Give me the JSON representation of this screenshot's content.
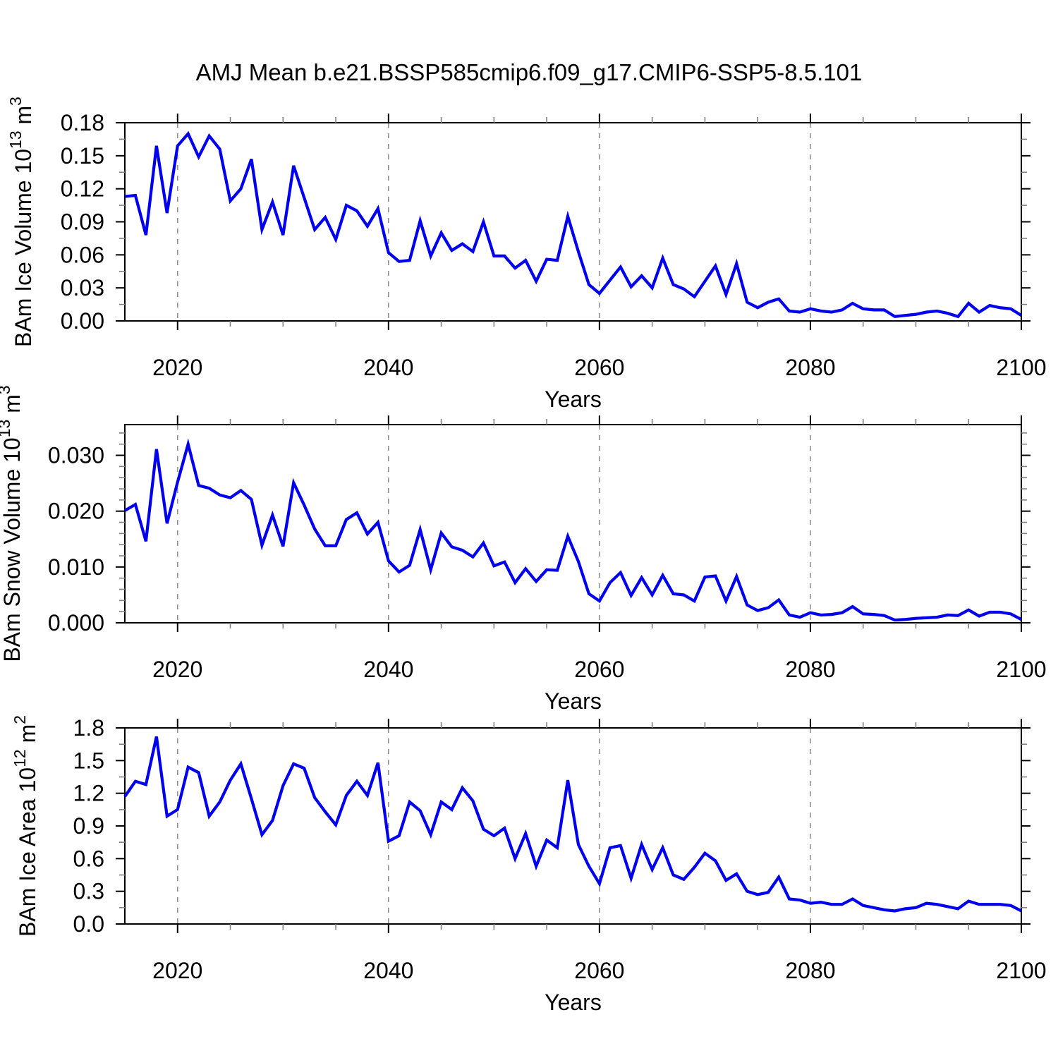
{
  "title": "AMJ Mean b.e21.BSSP585cmip6.f09_g17.CMIP6-SSP5-8.5.101",
  "colors": {
    "line": "#0000EE",
    "axis": "#000000",
    "minor_tick": "#808080",
    "gridline": "#909090",
    "text": "#000000",
    "background": "#ffffff"
  },
  "chart_data": [
    {
      "type": "line",
      "title": "",
      "xlabel": "Years",
      "ylabel_parts": [
        {
          "t": "BAm Ice Volume 10",
          "sup": false
        },
        {
          "t": "13",
          "sup": true
        },
        {
          "t": " m",
          "sup": false
        },
        {
          "t": "3",
          "sup": true
        }
      ],
      "xlim": [
        2015,
        2100
      ],
      "x_start": 2015,
      "x_step": 1,
      "ylim": [
        0,
        0.18
      ],
      "xticks_major": {
        "values": [
          2020,
          2040,
          2060,
          2080,
          2100
        ],
        "labels": [
          "2020",
          "2040",
          "2060",
          "2080",
          "2100"
        ]
      },
      "xtick_minor_step": 5,
      "yticks_major": {
        "values": [
          0,
          0.03,
          0.06,
          0.09,
          0.12,
          0.15,
          0.18
        ],
        "labels": [
          "0.00",
          "0.03",
          "0.06",
          "0.09",
          "0.12",
          "0.15",
          "0.18"
        ]
      },
      "ytick_minor_step": 0.015,
      "gridlines_x": [
        2020,
        2040,
        2060,
        2080
      ],
      "grid_style": "vertical-dashed",
      "legend": "none",
      "values": [
        0.113,
        0.114,
        0.078,
        0.159,
        0.098,
        0.159,
        0.17,
        0.149,
        0.168,
        0.156,
        0.109,
        0.12,
        0.147,
        0.083,
        0.108,
        0.078,
        0.141,
        0.112,
        0.083,
        0.094,
        0.074,
        0.105,
        0.1,
        0.086,
        0.102,
        0.062,
        0.054,
        0.055,
        0.091,
        0.059,
        0.08,
        0.064,
        0.07,
        0.063,
        0.09,
        0.059,
        0.059,
        0.048,
        0.055,
        0.036,
        0.056,
        0.055,
        0.095,
        0.063,
        0.033,
        0.025,
        0.037,
        0.049,
        0.031,
        0.041,
        0.03,
        0.057,
        0.033,
        0.029,
        0.022,
        0.036,
        0.05,
        0.024,
        0.052,
        0.017,
        0.012,
        0.017,
        0.02,
        0.009,
        0.008,
        0.011,
        0.009,
        0.008,
        0.01,
        0.016,
        0.011,
        0.01,
        0.01,
        0.004,
        0.005,
        0.006,
        0.008,
        0.009,
        0.007,
        0.004,
        0.016,
        0.008,
        0.014,
        0.012,
        0.011,
        0.005
      ]
    },
    {
      "type": "line",
      "title": "",
      "xlabel": "Years",
      "ylabel_parts": [
        {
          "t": "BAm Snow Volume 10",
          "sup": false
        },
        {
          "t": "13",
          "sup": true
        },
        {
          "t": " m",
          "sup": false
        },
        {
          "t": "3",
          "sup": true
        }
      ],
      "xlim": [
        2015,
        2100
      ],
      "x_start": 2015,
      "x_step": 1,
      "ylim": [
        0,
        0.0355
      ],
      "xticks_major": {
        "values": [
          2020,
          2040,
          2060,
          2080,
          2100
        ],
        "labels": [
          "2020",
          "2040",
          "2060",
          "2080",
          "2100"
        ]
      },
      "xtick_minor_step": 5,
      "yticks_major": {
        "values": [
          0,
          0.01,
          0.02,
          0.03
        ],
        "labels": [
          "0.000",
          "0.010",
          "0.020",
          "0.030"
        ]
      },
      "ytick_minor_step": 0.002,
      "gridlines_x": [
        2020,
        2040,
        2060,
        2080
      ],
      "grid_style": "vertical-dashed",
      "legend": "none",
      "values": [
        0.0201,
        0.0212,
        0.0146,
        0.0311,
        0.0178,
        0.0252,
        0.032,
        0.0246,
        0.0241,
        0.0229,
        0.0224,
        0.0237,
        0.0221,
        0.0139,
        0.0193,
        0.0137,
        0.0251,
        0.0211,
        0.0168,
        0.0138,
        0.0138,
        0.0185,
        0.0197,
        0.0159,
        0.018,
        0.0111,
        0.0091,
        0.0103,
        0.0167,
        0.0095,
        0.0161,
        0.0136,
        0.013,
        0.0118,
        0.0143,
        0.0102,
        0.0109,
        0.0072,
        0.0097,
        0.0074,
        0.0095,
        0.0094,
        0.0155,
        0.011,
        0.0052,
        0.0039,
        0.0072,
        0.009,
        0.0049,
        0.0081,
        0.005,
        0.0085,
        0.0052,
        0.005,
        0.0039,
        0.0082,
        0.0084,
        0.0039,
        0.0083,
        0.0032,
        0.0022,
        0.0027,
        0.0041,
        0.0014,
        0.001,
        0.0018,
        0.0014,
        0.0015,
        0.0018,
        0.0029,
        0.0016,
        0.0015,
        0.0013,
        0.0005,
        0.0006,
        0.0008,
        0.0009,
        0.001,
        0.0014,
        0.0013,
        0.0023,
        0.0012,
        0.0019,
        0.0019,
        0.0016,
        0.0006
      ]
    },
    {
      "type": "line",
      "title": "",
      "xlabel": "Years",
      "ylabel_parts": [
        {
          "t": "BAm Ice Area 10",
          "sup": false
        },
        {
          "t": "12",
          "sup": true
        },
        {
          "t": " m",
          "sup": false
        },
        {
          "t": "2",
          "sup": true
        }
      ],
      "xlim": [
        2015,
        2100
      ],
      "x_start": 2015,
      "x_step": 1,
      "ylim": [
        0,
        1.8
      ],
      "xticks_major": {
        "values": [
          2020,
          2040,
          2060,
          2080,
          2100
        ],
        "labels": [
          "2020",
          "2040",
          "2060",
          "2080",
          "2100"
        ]
      },
      "xtick_minor_step": 5,
      "yticks_major": {
        "values": [
          0,
          0.3,
          0.6,
          0.9,
          1.2,
          1.5,
          1.8
        ],
        "labels": [
          "0.0",
          "0.3",
          "0.6",
          "0.9",
          "1.2",
          "1.5",
          "1.8"
        ]
      },
      "ytick_minor_step": 0.15,
      "gridlines_x": [
        2020,
        2040,
        2060,
        2080
      ],
      "grid_style": "vertical-dashed",
      "legend": "none",
      "values": [
        1.17,
        1.31,
        1.28,
        1.72,
        0.99,
        1.05,
        1.44,
        1.39,
        0.99,
        1.12,
        1.32,
        1.47,
        1.15,
        0.82,
        0.95,
        1.27,
        1.47,
        1.43,
        1.16,
        1.03,
        0.91,
        1.18,
        1.31,
        1.18,
        1.48,
        0.76,
        0.81,
        1.12,
        1.04,
        0.82,
        1.12,
        1.05,
        1.25,
        1.13,
        0.87,
        0.81,
        0.88,
        0.6,
        0.83,
        0.53,
        0.77,
        0.7,
        1.32,
        0.73,
        0.53,
        0.37,
        0.7,
        0.72,
        0.42,
        0.73,
        0.5,
        0.7,
        0.45,
        0.41,
        0.52,
        0.65,
        0.58,
        0.4,
        0.46,
        0.3,
        0.27,
        0.29,
        0.43,
        0.23,
        0.22,
        0.19,
        0.2,
        0.18,
        0.18,
        0.23,
        0.17,
        0.15,
        0.13,
        0.12,
        0.14,
        0.15,
        0.19,
        0.18,
        0.16,
        0.14,
        0.21,
        0.18,
        0.18,
        0.18,
        0.17,
        0.12
      ]
    }
  ]
}
